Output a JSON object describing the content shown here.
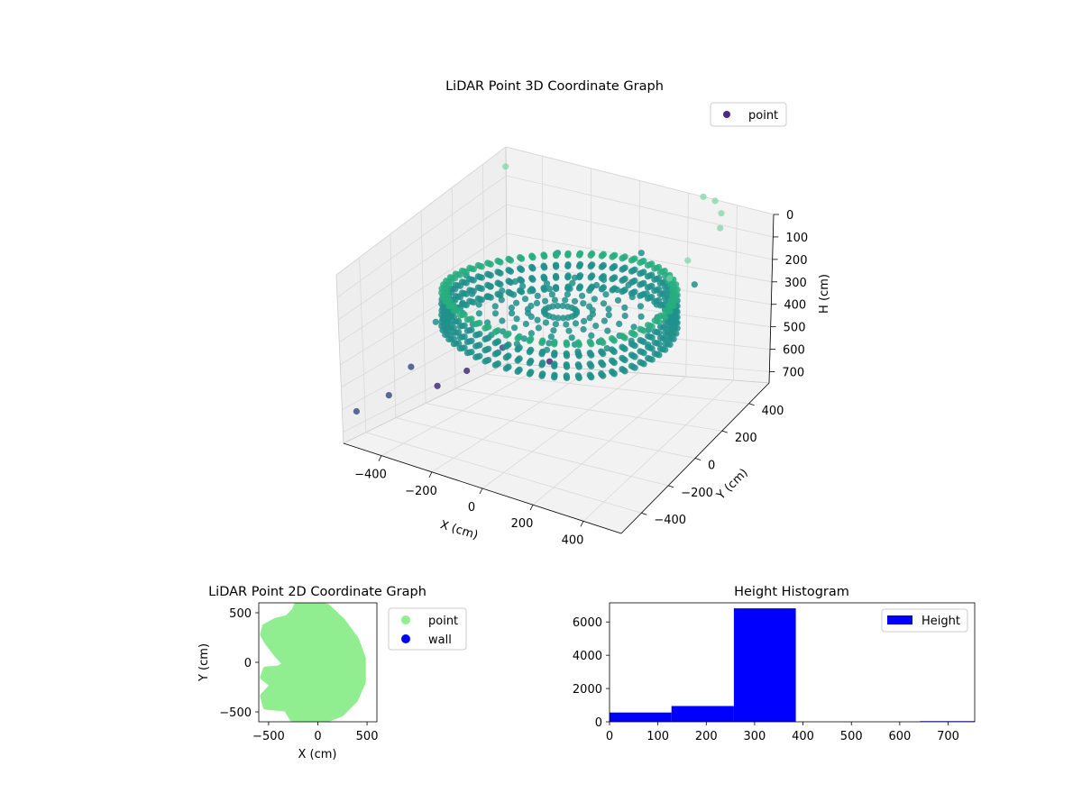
{
  "chart_data": [
    {
      "type": "scatter",
      "projection": "3d",
      "title": "LiDAR Point 3D Coordinate Graph",
      "xlabel": "X (cm)",
      "ylabel": "Y (cm)",
      "zlabel": "H (cm)",
      "x_ticks": [
        "−400",
        "−200",
        "0",
        "200",
        "400"
      ],
      "y_ticks": [
        "400",
        "200",
        "0",
        "−200",
        "−400"
      ],
      "z_ticks": [
        "0",
        "100",
        "200",
        "300",
        "400",
        "500",
        "600",
        "700"
      ],
      "xlim": [
        -550,
        550
      ],
      "ylim": [
        -550,
        550
      ],
      "zlim": [
        750,
        0
      ],
      "z_inverted": true,
      "colormap": "viridis",
      "legend": {
        "entries": [
          "point"
        ],
        "placement": "upper right"
      },
      "grid": true,
      "series": [
        {
          "name": "point",
          "color": "#472d7b",
          "ring_radius_cm": [
            430,
            440,
            450
          ],
          "ring_height_range_cm": [
            260,
            380
          ],
          "sample_points": [
            {
              "x": -480,
              "y": 160,
              "h": 320
            },
            {
              "x": -430,
              "y": -60,
              "h": 300
            },
            {
              "x": -300,
              "y": -350,
              "h": 300
            },
            {
              "x": 380,
              "y": 300,
              "h": 290
            },
            {
              "x": 430,
              "y": -130,
              "h": 300
            },
            {
              "x": -260,
              "y": 420,
              "h": 290
            },
            {
              "x": 60,
              "y": 470,
              "h": 280
            }
          ],
          "outliers": [
            {
              "x": -520,
              "y": 30,
              "h": 690
            },
            {
              "x": -540,
              "y": 260,
              "h": 700
            },
            {
              "x": -540,
              "y": 500,
              "h": 680
            },
            {
              "x": -300,
              "y": 430,
              "h": 690
            },
            {
              "x": 360,
              "y": 400,
              "h": 20
            },
            {
              "x": 420,
              "y": 380,
              "h": 20
            },
            {
              "x": 480,
              "y": 320,
              "h": 30
            },
            {
              "x": 520,
              "y": 240,
              "h": 40
            },
            {
              "x": 520,
              "y": 0,
              "h": 40
            },
            {
              "x": 500,
              "y": -100,
              "h": 60
            },
            {
              "x": -500,
              "y": -180,
              "h": 560
            },
            {
              "x": -470,
              "y": -380,
              "h": 600
            },
            {
              "x": -540,
              "y": -480,
              "h": 650
            },
            {
              "x": -540,
              "y": 520,
              "h": 30
            }
          ]
        }
      ]
    },
    {
      "type": "scatter",
      "title": "LiDAR Point 2D Coordinate Graph",
      "xlabel": "X (cm)",
      "ylabel": "Y (cm)",
      "x_ticks": [
        -500,
        0,
        500
      ],
      "y_ticks": [
        500,
        0,
        -500
      ],
      "xlim": [
        -600,
        600
      ],
      "ylim": [
        -600,
        600
      ],
      "legend": {
        "entries": [
          "point",
          "wall"
        ],
        "placement": "outside right"
      },
      "series": [
        {
          "name": "point",
          "color": "#90ee90",
          "boundary": [
            [
              -210,
              590
            ],
            [
              -40,
              600
            ],
            [
              100,
              560
            ],
            [
              250,
              420
            ],
            [
              390,
              230
            ],
            [
              460,
              40
            ],
            [
              460,
              -200
            ],
            [
              380,
              -380
            ],
            [
              240,
              -520
            ],
            [
              60,
              -590
            ],
            [
              -130,
              -600
            ],
            [
              -260,
              -570
            ],
            [
              -320,
              -470
            ],
            [
              -530,
              -450
            ],
            [
              -560,
              -340
            ],
            [
              -460,
              -230
            ],
            [
              -560,
              -150
            ],
            [
              -530,
              -70
            ],
            [
              -400,
              -60
            ],
            [
              -330,
              -20
            ],
            [
              -420,
              80
            ],
            [
              -520,
              210
            ],
            [
              -560,
              280
            ],
            [
              -540,
              360
            ],
            [
              -430,
              420
            ],
            [
              -310,
              450
            ],
            [
              -240,
              520
            ]
          ]
        },
        {
          "name": "wall",
          "color": "#0000ff",
          "points": []
        }
      ]
    },
    {
      "type": "bar",
      "subtype": "histogram",
      "title": "Height Histogram",
      "xlabel": "",
      "ylabel": "",
      "x_ticks": [
        0,
        100,
        200,
        300,
        400,
        500,
        600,
        700
      ],
      "y_ticks": [
        0,
        2000,
        4000,
        6000
      ],
      "xlim": [
        0,
        755
      ],
      "ylim": [
        0,
        7150
      ],
      "legend": {
        "entries": [
          "Height"
        ],
        "placement": "upper right"
      },
      "series": [
        {
          "name": "Height",
          "color": "#0000ff",
          "bins": [
            {
              "from": 0,
              "to": 128,
              "count": 560
            },
            {
              "from": 128,
              "to": 257,
              "count": 950
            },
            {
              "from": 257,
              "to": 385,
              "count": 6820
            },
            {
              "from": 385,
              "to": 513,
              "count": 0
            },
            {
              "from": 513,
              "to": 642,
              "count": 0
            },
            {
              "from": 642,
              "to": 755,
              "count": 40
            }
          ]
        }
      ]
    }
  ]
}
